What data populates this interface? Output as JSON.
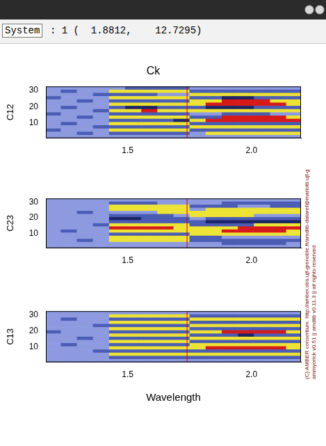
{
  "window": {
    "status_label": "System",
    "status_text": ": 1 (  1.8812,    12.7295)",
    "copyright": [
      "(C) AMBER consortium. http://amber.obs.ujf-grenoble.fr/amdlib-dataref@mariotti.ujf-g",
      "ammyorick v0.51 || amdlib v0.11.3 || all rights reserved"
    ]
  },
  "chart_data": [
    {
      "type": "heatmap",
      "title": "Ck",
      "ylabel": "C12",
      "xlim": [
        1.17,
        2.2
      ],
      "ylim": [
        0.5,
        32.5
      ],
      "xticks": [
        1.5,
        {
          "value": 2,
          "label": "2.0"
        }
      ],
      "yticks": [
        10,
        20,
        30
      ],
      "grid": false,
      "vertical_line": 1.74,
      "zlim": [
        -2,
        2
      ],
      "cells": {
        "x": [
          1.2,
          1.26,
          1.33,
          1.39,
          1.46,
          1.52,
          1.59,
          1.65,
          1.72,
          1.78,
          1.85,
          1.91,
          1.98,
          2.04,
          2.11,
          2.17
        ],
        "y": [
          31.5,
          29.5,
          27.5,
          25.5,
          23.5,
          21.5,
          19.5,
          17.5,
          15.5,
          13.5,
          11.5,
          9.5,
          7.5,
          5.5,
          3.5,
          1.5
        ],
        "z": [
          [
            0,
            0,
            0,
            0,
            0,
            -1,
            -1,
            -1,
            -1,
            0,
            0,
            0,
            0,
            0,
            0,
            0
          ],
          [
            0,
            -1,
            0,
            0,
            1,
            1,
            1,
            1,
            1,
            -1,
            -1,
            -1,
            -1,
            -1,
            -1,
            -1
          ],
          [
            0,
            0,
            0,
            -1,
            -1,
            -1,
            -1,
            0,
            0,
            1,
            1,
            1,
            1,
            1,
            1,
            1
          ],
          [
            -1,
            0,
            0,
            0,
            1,
            1,
            1,
            1,
            1,
            -1,
            -1,
            -2,
            -2,
            -1,
            -1,
            -1
          ],
          [
            0,
            0,
            -1,
            0,
            -1,
            -1,
            -1,
            -1,
            -1,
            1,
            1,
            2,
            2,
            2,
            1,
            1
          ],
          [
            0,
            0,
            0,
            0,
            1,
            1,
            1,
            1,
            1,
            1,
            2,
            2,
            2,
            2,
            2,
            1
          ],
          [
            0,
            -1,
            0,
            0,
            -1,
            -2,
            -2,
            -1,
            -1,
            -1,
            -2,
            -2,
            -2,
            -1,
            -1,
            -1
          ],
          [
            0,
            0,
            0,
            -1,
            1,
            1,
            2,
            1,
            1,
            1,
            1,
            1,
            1,
            1,
            1,
            1
          ],
          [
            -1,
            0,
            0,
            0,
            -1,
            -1,
            -1,
            -1,
            -1,
            0,
            0,
            -1,
            -1,
            -1,
            0,
            0
          ],
          [
            0,
            0,
            -1,
            0,
            1,
            1,
            1,
            1,
            1,
            -1,
            -1,
            2,
            2,
            2,
            2,
            1
          ],
          [
            0,
            0,
            0,
            0,
            -1,
            -1,
            -1,
            -1,
            -2,
            1,
            2,
            2,
            2,
            2,
            2,
            2
          ],
          [
            0,
            -1,
            0,
            0,
            1,
            1,
            1,
            1,
            1,
            -1,
            -1,
            -1,
            -1,
            -1,
            -1,
            -1
          ],
          [
            0,
            0,
            0,
            -1,
            -1,
            -1,
            -1,
            -1,
            -1,
            1,
            1,
            1,
            1,
            1,
            1,
            1
          ],
          [
            -1,
            0,
            0,
            0,
            1,
            1,
            1,
            1,
            1,
            -1,
            -1,
            -1,
            -1,
            -1,
            -1,
            -1
          ],
          [
            0,
            0,
            -1,
            0,
            -1,
            -1,
            -1,
            -1,
            -1,
            0,
            1,
            1,
            1,
            1,
            1,
            1
          ],
          [
            0,
            0,
            0,
            0,
            0,
            0,
            0,
            0,
            0,
            0,
            0,
            0,
            0,
            0,
            0,
            0
          ]
        ]
      }
    },
    {
      "type": "heatmap",
      "ylabel": "C23",
      "xlim": [
        1.17,
        2.2
      ],
      "ylim": [
        0.5,
        32.5
      ],
      "xticks": [
        1.5,
        {
          "value": 2,
          "label": "2.0"
        }
      ],
      "yticks": [
        10,
        20,
        30
      ],
      "grid": false,
      "vertical_line": 1.74,
      "zlim": [
        -2,
        2
      ],
      "cells": {
        "x": [
          1.2,
          1.26,
          1.33,
          1.39,
          1.46,
          1.52,
          1.59,
          1.65,
          1.72,
          1.78,
          1.85,
          1.91,
          1.98,
          2.04,
          2.11,
          2.17
        ],
        "y": [
          31.5,
          29.5,
          27.5,
          25.5,
          23.5,
          21.5,
          19.5,
          17.5,
          15.5,
          13.5,
          11.5,
          9.5,
          7.5,
          5.5,
          3.5,
          1.5
        ],
        "z": [
          [
            0,
            0,
            0,
            0,
            0,
            0,
            0,
            0,
            0,
            0,
            0,
            0,
            0,
            0,
            0,
            0
          ],
          [
            0,
            0,
            0,
            0,
            -1,
            -1,
            -1,
            0,
            0,
            0,
            0,
            -1,
            -1,
            -1,
            -1,
            -1
          ],
          [
            0,
            0,
            0,
            0,
            1,
            1,
            1,
            1,
            1,
            -1,
            -1,
            -1,
            0,
            0,
            -1,
            -1
          ],
          [
            0,
            0,
            0,
            0,
            1,
            1,
            1,
            1,
            1,
            0,
            1,
            1,
            1,
            1,
            1,
            1
          ],
          [
            0,
            0,
            -1,
            0,
            0,
            0,
            0,
            1,
            1,
            1,
            1,
            1,
            1,
            1,
            1,
            1
          ],
          [
            0,
            0,
            0,
            0,
            -1,
            -1,
            -1,
            -1,
            0,
            1,
            1,
            1,
            1,
            0,
            0,
            0
          ],
          [
            0,
            0,
            0,
            0,
            -2,
            -2,
            -1,
            -1,
            -1,
            0,
            -1,
            -1,
            -1,
            -1,
            -1,
            -1
          ],
          [
            0,
            0,
            0,
            0,
            -1,
            -1,
            -1,
            -1,
            -1,
            -1,
            -2,
            -2,
            -2,
            -2,
            -2,
            -2
          ],
          [
            0,
            0,
            0,
            -1,
            1,
            1,
            1,
            1,
            1,
            -1,
            -1,
            -1,
            -1,
            1,
            1,
            1
          ],
          [
            0,
            0,
            0,
            0,
            2,
            2,
            2,
            2,
            1,
            1,
            1,
            1,
            2,
            2,
            2,
            2
          ],
          [
            0,
            -1,
            0,
            0,
            1,
            1,
            1,
            1,
            1,
            1,
            1,
            2,
            2,
            2,
            2,
            1
          ],
          [
            0,
            0,
            0,
            0,
            -1,
            -1,
            -1,
            -1,
            -1,
            1,
            1,
            1,
            1,
            1,
            1,
            1
          ],
          [
            0,
            0,
            0,
            0,
            1,
            1,
            1,
            1,
            1,
            -1,
            -1,
            0,
            0,
            0,
            0,
            0
          ],
          [
            0,
            0,
            -1,
            0,
            1,
            1,
            1,
            1,
            1,
            -1,
            -1,
            -1,
            -1,
            -1,
            -1,
            -1
          ],
          [
            0,
            0,
            0,
            0,
            0,
            0,
            0,
            0,
            0,
            0,
            0,
            -1,
            -1,
            -1,
            -1,
            0
          ],
          [
            0,
            0,
            0,
            0,
            0,
            0,
            0,
            0,
            0,
            0,
            0,
            0,
            0,
            0,
            0,
            0
          ]
        ]
      }
    },
    {
      "type": "heatmap",
      "ylabel": "C13",
      "xlabel": "Wavelength",
      "xlim": [
        1.17,
        2.2
      ],
      "ylim": [
        0.5,
        32.5
      ],
      "xticks": [
        1.5,
        {
          "value": 2,
          "label": "2.0"
        }
      ],
      "yticks": [
        10,
        20,
        30
      ],
      "grid": false,
      "vertical_line": 1.74,
      "zlim": [
        -2,
        2
      ],
      "cells": {
        "x": [
          1.2,
          1.26,
          1.33,
          1.39,
          1.46,
          1.52,
          1.59,
          1.65,
          1.72,
          1.78,
          1.85,
          1.91,
          1.98,
          2.04,
          2.11,
          2.17
        ],
        "y": [
          31.5,
          29.5,
          27.5,
          25.5,
          23.5,
          21.5,
          19.5,
          17.5,
          15.5,
          13.5,
          11.5,
          9.5,
          7.5,
          5.5,
          3.5,
          1.5
        ],
        "z": [
          [
            0,
            0,
            0,
            0,
            0,
            0,
            0,
            0,
            0,
            0,
            0,
            0,
            0,
            0,
            0,
            0
          ],
          [
            0,
            0,
            0,
            0,
            1,
            1,
            1,
            1,
            1,
            -1,
            -1,
            -1,
            -1,
            -1,
            -1,
            -1
          ],
          [
            0,
            -1,
            0,
            0,
            -1,
            -1,
            -1,
            -1,
            -1,
            1,
            1,
            1,
            1,
            1,
            1,
            1
          ],
          [
            0,
            0,
            0,
            0,
            1,
            1,
            1,
            1,
            1,
            -1,
            -1,
            -1,
            -1,
            -1,
            -1,
            -1
          ],
          [
            0,
            0,
            0,
            -1,
            -1,
            -1,
            -1,
            -1,
            -1,
            1,
            1,
            1,
            1,
            1,
            1,
            1
          ],
          [
            0,
            0,
            0,
            0,
            1,
            1,
            1,
            1,
            1,
            -1,
            -1,
            -1,
            -1,
            -1,
            -1,
            -1
          ],
          [
            -1,
            0,
            0,
            0,
            -1,
            -1,
            -1,
            -1,
            -1,
            1,
            1,
            2,
            2,
            2,
            2,
            1
          ],
          [
            0,
            0,
            0,
            0,
            1,
            1,
            1,
            1,
            1,
            -1,
            -1,
            -1,
            -2,
            -1,
            -1,
            -1
          ],
          [
            0,
            0,
            -1,
            0,
            -1,
            -1,
            -1,
            -1,
            -1,
            1,
            1,
            1,
            1,
            1,
            1,
            1
          ],
          [
            0,
            0,
            0,
            0,
            1,
            1,
            1,
            1,
            1,
            -1,
            -1,
            -1,
            -1,
            -1,
            -1,
            -1
          ],
          [
            0,
            -1,
            0,
            0,
            -1,
            -1,
            -1,
            -1,
            -1,
            1,
            1,
            1,
            1,
            1,
            1,
            1
          ],
          [
            0,
            0,
            0,
            0,
            1,
            1,
            1,
            1,
            1,
            1,
            2,
            2,
            2,
            2,
            2,
            1
          ],
          [
            0,
            0,
            0,
            -1,
            -1,
            -1,
            -1,
            -1,
            -1,
            -1,
            -1,
            -1,
            -1,
            -1,
            -1,
            -1
          ],
          [
            0,
            0,
            0,
            0,
            1,
            1,
            1,
            1,
            1,
            1,
            1,
            1,
            1,
            1,
            1,
            1
          ],
          [
            0,
            0,
            0,
            0,
            -1,
            -1,
            -1,
            -1,
            -1,
            -1,
            -1,
            -1,
            -1,
            -1,
            -1,
            -1
          ],
          [
            0,
            0,
            0,
            0,
            0,
            0,
            0,
            0,
            0,
            0,
            0,
            0,
            0,
            0,
            0,
            0
          ]
        ]
      }
    }
  ]
}
